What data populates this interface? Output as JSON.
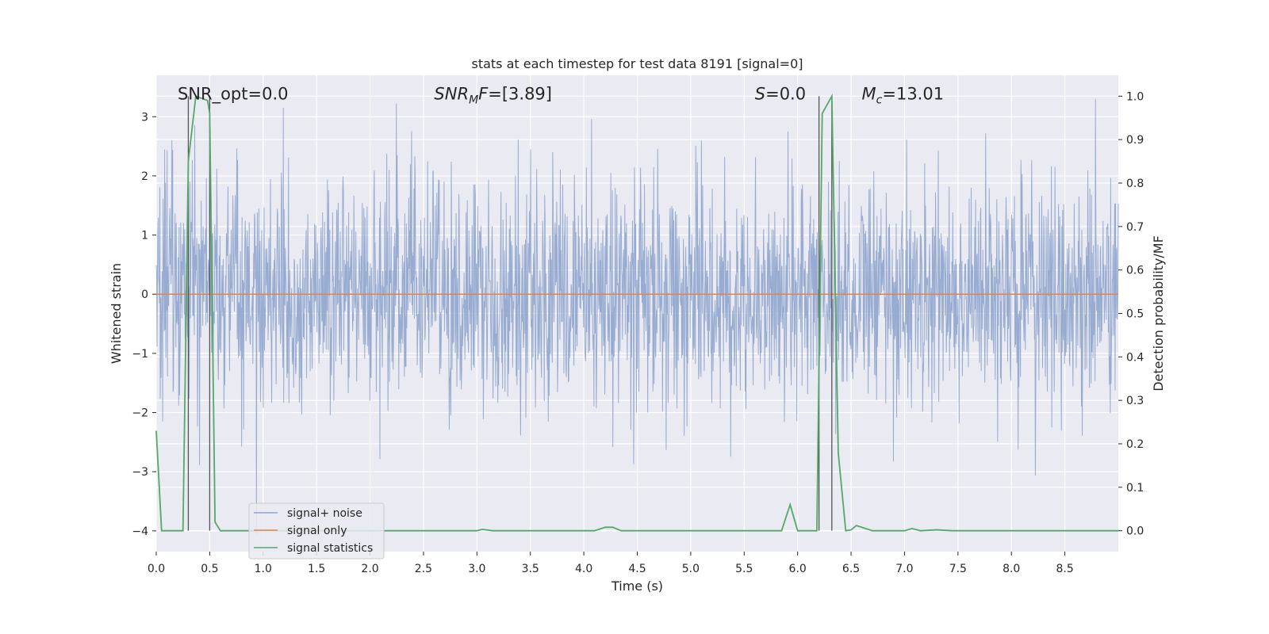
{
  "chart_data": {
    "type": "line",
    "title": "stats at each timestep for test data 8191 [signal=0]",
    "xlabel": "Time (s)",
    "ylabel": "Whitened strain",
    "ylabel_right": "Detection probability/MF",
    "xlim": [
      0.0,
      9.0
    ],
    "ylim": [
      -4.35,
      3.7
    ],
    "ylim_right": [
      -0.048,
      1.048
    ],
    "x_ticks": [
      0.0,
      0.5,
      1.0,
      1.5,
      2.0,
      2.5,
      3.0,
      3.5,
      4.0,
      4.5,
      5.0,
      5.5,
      6.0,
      6.5,
      7.0,
      7.5,
      8.0,
      8.5
    ],
    "x_tick_labels": [
      "0.0",
      "0.5",
      "1.0",
      "1.5",
      "2.0",
      "2.5",
      "3.0",
      "3.5",
      "4.0",
      "4.5",
      "5.0",
      "5.5",
      "6.0",
      "6.5",
      "7.0",
      "7.5",
      "8.0",
      "8.5"
    ],
    "y_ticks": [
      -4,
      -3,
      -2,
      -1,
      0,
      1,
      2,
      3
    ],
    "y_tick_labels": [
      "−4",
      "−3",
      "−2",
      "−1",
      "0",
      "1",
      "2",
      "3"
    ],
    "y_ticks_right": [
      0.0,
      0.1,
      0.2,
      0.3,
      0.4,
      0.5,
      0.6,
      0.7,
      0.8,
      0.9,
      1.0
    ],
    "y_tick_labels_right": [
      "0.0",
      "0.1",
      "0.2",
      "0.3",
      "0.4",
      "0.5",
      "0.6",
      "0.7",
      "0.8",
      "0.9",
      "1.0"
    ],
    "grid": true,
    "legend_position": "lower-left",
    "annotations": [
      {
        "text": "SNR_opt=0.0",
        "x": 0.2,
        "y": 3.4
      },
      {
        "text": "SNR_MF=[3.89]",
        "x": 2.6,
        "y": 3.4
      },
      {
        "text": "S=0.0",
        "x": 5.6,
        "y": 3.4
      },
      {
        "text": "M_c=13.01",
        "x": 6.6,
        "y": 3.4
      }
    ],
    "vertical_markers_x": [
      0.3,
      0.5,
      6.2,
      6.32
    ],
    "series": [
      {
        "name": "signal+ noise",
        "axis": "left",
        "color": "#8fa5cd",
        "style": "noise",
        "noise_std": 0.95,
        "range": [
          -4.1,
          3.3
        ],
        "x_start": 0.0,
        "x_end": 9.0
      },
      {
        "name": "signal only",
        "axis": "left",
        "color": "#dd8452",
        "x": [
          0.0,
          9.0
        ],
        "y": [
          0.0,
          0.0
        ]
      },
      {
        "name": "signal statistics",
        "axis": "right",
        "color": "#55a868",
        "x": [
          0.0,
          0.05,
          0.25,
          0.3,
          0.37,
          0.48,
          0.5,
          0.55,
          0.6,
          3.0,
          3.05,
          3.15,
          4.1,
          4.2,
          4.27,
          4.35,
          5.85,
          5.93,
          6.0,
          6.18,
          6.23,
          6.32,
          6.38,
          6.45,
          6.5,
          6.55,
          6.7,
          7.0,
          7.07,
          7.15,
          7.3,
          7.45,
          9.0
        ],
        "y": [
          0.23,
          0.0,
          0.0,
          0.85,
          1.0,
          0.99,
          0.96,
          0.02,
          0.0,
          0.0,
          0.003,
          0.0,
          0.0,
          0.008,
          0.008,
          0.0,
          0.0,
          0.06,
          0.0,
          0.0,
          0.96,
          1.0,
          0.18,
          0.0,
          0.002,
          0.012,
          0.0,
          0.0,
          0.005,
          0.0,
          0.002,
          0.0,
          0.0
        ]
      }
    ]
  }
}
